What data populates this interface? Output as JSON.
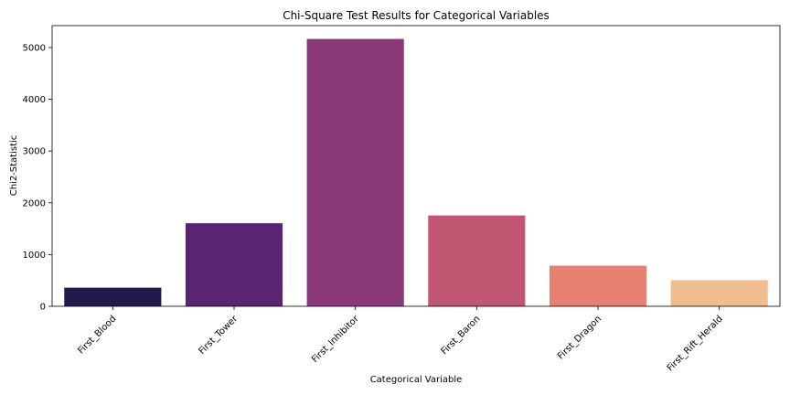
{
  "chart_data": {
    "type": "bar",
    "title": "Chi-Square Test Results for Categorical Variables",
    "xlabel": "Categorical Variable",
    "ylabel": "Chi2-Statistic",
    "categories": [
      "First_Blood",
      "First_Tower",
      "First_Inhibitor",
      "First_Baron",
      "First_Dragon",
      "First_Rift_Herald"
    ],
    "values": [
      360,
      1605,
      5165,
      1755,
      785,
      505
    ],
    "colors": [
      "#221a4a",
      "#5b2472",
      "#8a3877",
      "#c05671",
      "#e68170",
      "#f0bd8e"
    ],
    "ylim": [
      0,
      5423
    ],
    "yticks": [
      0,
      1000,
      2000,
      3000,
      4000,
      5000
    ],
    "ytick_labels": [
      "0",
      "1000",
      "2000",
      "3000",
      "4000",
      "5000"
    ],
    "grid": false,
    "xtick_rotation": 45
  }
}
